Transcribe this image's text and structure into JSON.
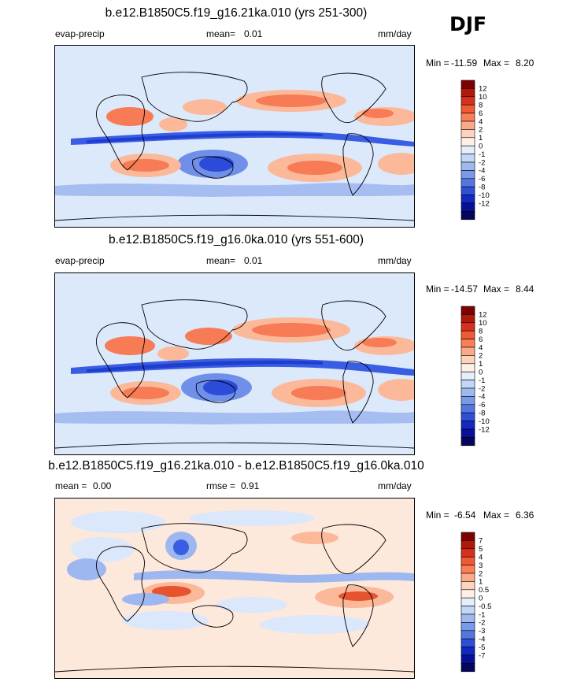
{
  "season": "DJF",
  "colors": {
    "seq12": [
      "#08306b",
      "#08137e",
      "#1f3fd1",
      "#3b5fe0",
      "#5a7ae6",
      "#7f99ec",
      "#a6b9f2",
      "#d6e6fb",
      "#fde4d3",
      "#fcc0a2",
      "#fa9a78",
      "#f47651",
      "#e5532f",
      "#c73317",
      "#9b1409"
    ],
    "land_line": "#000000"
  },
  "panels": [
    {
      "title": "b.e12.B1850C5.f19_g16.21ka.010 (yrs 251-300)",
      "left_label": "evap-precip",
      "mean_label": "mean=",
      "mean_value": "0.01",
      "rmse_label": "",
      "rmse_value": "",
      "units": "mm/day",
      "min_label": "Min =",
      "min_value": "-11.59",
      "max_label": "Max =",
      "max_value": "8.20",
      "colorbar_labels": [
        "12",
        "10",
        "8",
        "6",
        "4",
        "2",
        "1",
        "0",
        "-1",
        "-2",
        "-4",
        "-6",
        "-8",
        "-10",
        "-12"
      ],
      "colorbar_colors": [
        "#7f0000",
        "#b0180a",
        "#d7301f",
        "#ef5a32",
        "#fb7e55",
        "#fca98a",
        "#fdd3bd",
        "#fef0e6",
        "#e5eefb",
        "#c2d6f6",
        "#9fb9f0",
        "#7a9ae9",
        "#5476e1",
        "#2f4fd6",
        "#1228c2",
        "#08109a",
        "#04065e"
      ]
    },
    {
      "title": "b.e12.B1850C5.f19_g16.0ka.010 (yrs 551-600)",
      "left_label": "evap-precip",
      "mean_label": "mean=",
      "mean_value": "0.01",
      "rmse_label": "",
      "rmse_value": "",
      "units": "mm/day",
      "min_label": "Min =",
      "min_value": "-14.57",
      "max_label": "Max =",
      "max_value": "8.44",
      "colorbar_labels": [
        "12",
        "10",
        "8",
        "6",
        "4",
        "2",
        "1",
        "0",
        "-1",
        "-2",
        "-4",
        "-6",
        "-8",
        "-10",
        "-12"
      ],
      "colorbar_colors": [
        "#7f0000",
        "#b0180a",
        "#d7301f",
        "#ef5a32",
        "#fb7e55",
        "#fca98a",
        "#fdd3bd",
        "#fef0e6",
        "#e5eefb",
        "#c2d6f6",
        "#9fb9f0",
        "#7a9ae9",
        "#5476e1",
        "#2f4fd6",
        "#1228c2",
        "#08109a",
        "#04065e"
      ]
    },
    {
      "title": "b.e12.B1850C5.f19_g16.21ka.010 - b.e12.B1850C5.f19_g16.0ka.010",
      "left_label": "",
      "mean_label": "mean =",
      "mean_value": "0.00",
      "rmse_label": "rmse =",
      "rmse_value": "0.91",
      "units": "mm/day",
      "min_label": "Min =",
      "min_value": "-6.54",
      "max_label": "Max =",
      "max_value": "6.36",
      "colorbar_labels": [
        "7",
        "5",
        "4",
        "3",
        "2",
        "1",
        "0.5",
        "0",
        "-0.5",
        "-1",
        "-2",
        "-3",
        "-4",
        "-5",
        "-7"
      ],
      "colorbar_colors": [
        "#7f0000",
        "#b0180a",
        "#d7301f",
        "#ef5a32",
        "#fb7e55",
        "#fca98a",
        "#fdd3bd",
        "#fef0e6",
        "#e5eefb",
        "#c2d6f6",
        "#9fb9f0",
        "#7a9ae9",
        "#5476e1",
        "#2f4fd6",
        "#1228c2",
        "#08109a",
        "#04065e"
      ]
    }
  ],
  "chart_data": [
    {
      "type": "heatmap",
      "title": "b.e12.B1850C5.f19_g16.21ka.010 (yrs 251-300)",
      "variable": "evap-precip",
      "units": "mm/day",
      "mean": 0.01,
      "min": -11.59,
      "max": 8.2,
      "levels": [
        -12,
        -10,
        -8,
        -6,
        -4,
        -2,
        -1,
        0,
        1,
        2,
        4,
        6,
        8,
        10,
        12
      ],
      "x": "longitude (0E to 360E, Pacific-centred global map)",
      "y": "latitude (90S to 90N)"
    },
    {
      "type": "heatmap",
      "title": "b.e12.B1850C5.f19_g16.0ka.010 (yrs 551-600)",
      "variable": "evap-precip",
      "units": "mm/day",
      "mean": 0.01,
      "min": -14.57,
      "max": 8.44,
      "levels": [
        -12,
        -10,
        -8,
        -6,
        -4,
        -2,
        -1,
        0,
        1,
        2,
        4,
        6,
        8,
        10,
        12
      ]
    },
    {
      "type": "heatmap",
      "title": "b.e12.B1850C5.f19_g16.21ka.010 - b.e12.B1850C5.f19_g16.0ka.010",
      "units": "mm/day",
      "mean": 0.0,
      "rmse": 0.91,
      "min": -6.54,
      "max": 6.36,
      "levels": [
        -7,
        -5,
        -4,
        -3,
        -2,
        -1,
        -0.5,
        0,
        0.5,
        1,
        2,
        3,
        4,
        5,
        7
      ]
    }
  ]
}
